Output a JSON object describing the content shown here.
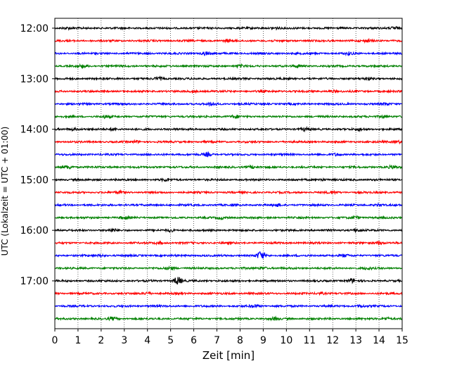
{
  "chart_data": {
    "type": "line",
    "title": "",
    "xlabel": "Zeit  [min]",
    "ylabel": "UTC (Lokalzeit = UTC + 01:00)",
    "xlim": [
      0,
      15
    ],
    "x_ticks": [
      "0",
      "1",
      "2",
      "3",
      "4",
      "5",
      "6",
      "7",
      "8",
      "9",
      "10",
      "11",
      "12",
      "13",
      "14",
      "15"
    ],
    "y_ticks": [
      "12:00",
      "13:00",
      "14:00",
      "15:00",
      "16:00",
      "17:00"
    ],
    "grid": "vertical-dotted",
    "trace_interval_minutes": 15,
    "colors": [
      "#000000",
      "#ff0000",
      "#0000ff",
      "#008000"
    ],
    "series": [
      {
        "start": "12:00",
        "events": [
          {
            "x": 0.5,
            "amp": 1.0
          },
          {
            "x": 9.5,
            "amp": 1.2
          },
          {
            "x": 14.7,
            "amp": 2.0
          }
        ]
      },
      {
        "start": "12:15",
        "events": [
          {
            "x": 7.5,
            "amp": 1.2
          },
          {
            "x": 13.5,
            "amp": 1.3
          }
        ]
      },
      {
        "start": "12:30",
        "events": [
          {
            "x": 6.5,
            "amp": 2.2
          },
          {
            "x": 12.7,
            "amp": 1.5
          }
        ]
      },
      {
        "start": "12:45",
        "events": [
          {
            "x": 1.2,
            "amp": 1.6
          },
          {
            "x": 8.0,
            "amp": 1.3
          },
          {
            "x": 10.5,
            "amp": 1.4
          }
        ]
      },
      {
        "start": "13:00",
        "events": [
          {
            "x": 4.5,
            "amp": 1.8
          },
          {
            "x": 13.5,
            "amp": 1.4
          }
        ]
      },
      {
        "start": "13:15",
        "events": [
          {
            "x": 6.0,
            "amp": 1.0
          },
          {
            "x": 12.0,
            "amp": 1.2
          }
        ]
      },
      {
        "start": "13:30",
        "events": [
          {
            "x": 6.8,
            "amp": 1.8
          },
          {
            "x": 14.3,
            "amp": 1.3
          }
        ]
      },
      {
        "start": "13:45",
        "events": [
          {
            "x": 2.2,
            "amp": 1.4
          },
          {
            "x": 7.8,
            "amp": 1.6
          },
          {
            "x": 14.2,
            "amp": 1.8
          }
        ]
      },
      {
        "start": "14:00",
        "events": [
          {
            "x": 0.8,
            "amp": 1.5
          },
          {
            "x": 2.5,
            "amp": 1.3
          },
          {
            "x": 10.8,
            "amp": 1.6
          },
          {
            "x": 13.2,
            "amp": 1.4
          }
        ]
      },
      {
        "start": "14:15",
        "events": [
          {
            "x": 3.5,
            "amp": 1.2
          },
          {
            "x": 14.8,
            "amp": 1.5
          }
        ]
      },
      {
        "start": "14:30",
        "events": [
          {
            "x": 6.6,
            "amp": 2.0
          },
          {
            "x": 12.2,
            "amp": 1.4
          }
        ]
      },
      {
        "start": "14:45",
        "events": [
          {
            "x": 0.6,
            "amp": 2.0
          },
          {
            "x": 8.5,
            "amp": 1.5
          },
          {
            "x": 14.6,
            "amp": 1.8
          }
        ]
      },
      {
        "start": "15:00",
        "events": [
          {
            "x": 4.8,
            "amp": 1.4
          },
          {
            "x": 11.5,
            "amp": 1.3
          }
        ]
      },
      {
        "start": "15:15",
        "events": [
          {
            "x": 2.8,
            "amp": 1.3
          },
          {
            "x": 12.0,
            "amp": 1.4
          }
        ]
      },
      {
        "start": "15:30",
        "events": [
          {
            "x": 9.6,
            "amp": 1.6
          },
          {
            "x": 14.0,
            "amp": 1.3
          }
        ]
      },
      {
        "start": "15:45",
        "events": [
          {
            "x": 3.0,
            "amp": 1.5
          },
          {
            "x": 7.2,
            "amp": 1.4
          },
          {
            "x": 13.0,
            "amp": 1.6
          }
        ]
      },
      {
        "start": "16:00",
        "events": [
          {
            "x": 2.5,
            "amp": 1.7
          },
          {
            "x": 5.0,
            "amp": 1.4
          },
          {
            "x": 13.0,
            "amp": 1.7
          }
        ]
      },
      {
        "start": "16:15",
        "events": [
          {
            "x": 4.5,
            "amp": 1.2
          },
          {
            "x": 14.0,
            "amp": 1.8
          }
        ]
      },
      {
        "start": "16:30",
        "events": [
          {
            "x": 8.9,
            "amp": 5.5
          },
          {
            "x": 2.0,
            "amp": 1.2
          },
          {
            "x": 12.5,
            "amp": 1.3
          }
        ]
      },
      {
        "start": "16:45",
        "events": [
          {
            "x": 5.0,
            "amp": 1.8
          },
          {
            "x": 9.0,
            "amp": 1.4
          },
          {
            "x": 13.5,
            "amp": 1.4
          }
        ]
      },
      {
        "start": "17:00",
        "events": [
          {
            "x": 5.3,
            "amp": 5.0
          },
          {
            "x": 12.8,
            "amp": 2.2
          }
        ]
      },
      {
        "start": "17:15",
        "events": [
          {
            "x": 4.0,
            "amp": 1.2
          },
          {
            "x": 11.5,
            "amp": 1.2
          }
        ]
      },
      {
        "start": "17:30",
        "events": [
          {
            "x": 8.6,
            "amp": 1.8
          },
          {
            "x": 13.2,
            "amp": 1.3
          }
        ]
      },
      {
        "start": "17:45",
        "events": [
          {
            "x": 2.5,
            "amp": 1.5
          },
          {
            "x": 9.5,
            "amp": 1.4
          },
          {
            "x": 14.3,
            "amp": 1.6
          }
        ]
      }
    ]
  }
}
